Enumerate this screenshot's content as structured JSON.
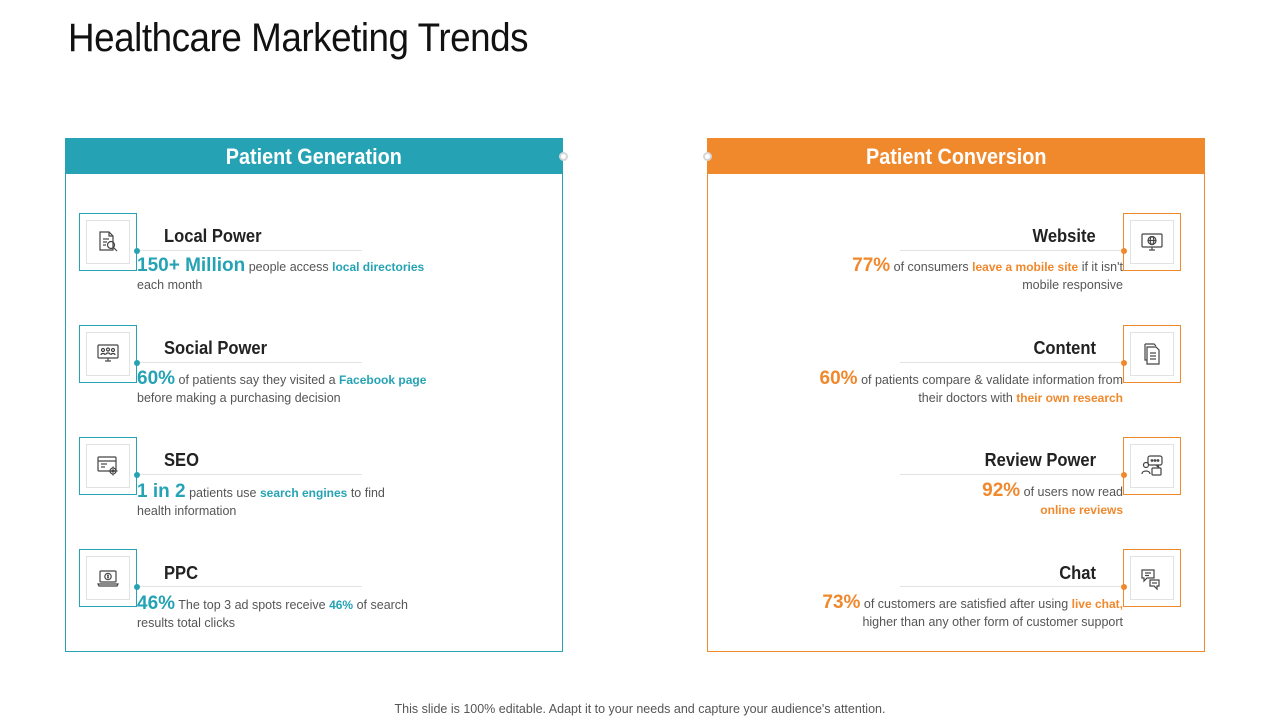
{
  "title": "Healthcare Marketing Trends",
  "accent_teal": "#25a3b4",
  "accent_orange": "#f0882c",
  "patient_generation": {
    "header": "Patient Generation",
    "items": [
      {
        "icon": "document-search-icon",
        "title": "Local Power",
        "stat": "150+ Million",
        "text1": "people access",
        "highlight": "local directories",
        "text2": "",
        "line2": "each month"
      },
      {
        "icon": "monitor-people-icon",
        "title": "Social Power",
        "stat": "60%",
        "text1": "of patients say they visited a",
        "highlight": "Facebook page",
        "text2": "",
        "line2": "before making a purchasing decision"
      },
      {
        "icon": "browser-gear-icon",
        "title": "SEO",
        "stat": "1 in 2",
        "text1": "patients use",
        "highlight": "search engines",
        "text2": "to find",
        "line2": "health information"
      },
      {
        "icon": "laptop-dollar-icon",
        "title": "PPC",
        "stat": "46%",
        "text1": "The top 3 ad spots receive",
        "highlight": "46%",
        "text2": "of search",
        "line2": "results total clicks"
      }
    ]
  },
  "patient_conversion": {
    "header": "Patient Conversion",
    "items": [
      {
        "icon": "web-monitor-icon",
        "title": "Website",
        "stat": "77%",
        "text1": "of consumers",
        "highlight": "leave a mobile site",
        "text2": "if it isn't",
        "line2_text": "mobile responsive",
        "line2_highlight": ""
      },
      {
        "icon": "documents-icon",
        "title": "Content",
        "stat": "60%",
        "text1": "of patients compare & validate information from",
        "highlight": "",
        "text2": "",
        "line2_text": "their doctors with",
        "line2_highlight": "their own research"
      },
      {
        "icon": "review-chat-icon",
        "title": "Review Power",
        "stat": "92%",
        "text1": "of users now read",
        "highlight": "",
        "text2": "",
        "line2_text": "",
        "line2_highlight": "online reviews"
      },
      {
        "icon": "chat-bubbles-icon",
        "title": "Chat",
        "stat": "73%",
        "text1": "of customers are satisfied after using",
        "highlight": "live chat,",
        "text2": "",
        "line2_text": "higher than any other form of customer support",
        "line2_highlight": ""
      }
    ]
  },
  "footer": "This slide is 100% editable. Adapt it to your needs and capture your audience's attention."
}
